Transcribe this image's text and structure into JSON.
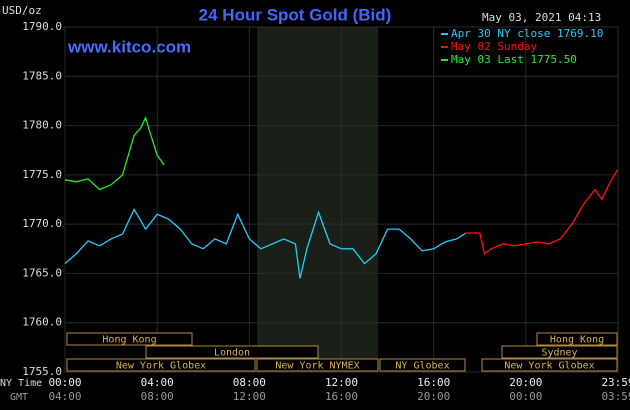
{
  "chart_data": {
    "type": "line",
    "title": "24 Hour Spot Gold (Bid)",
    "watermark": "www.kitco.com",
    "timestamp": "May 03, 2021 04:13",
    "y_label": "USD/oz",
    "x_label": "NY Time",
    "x2_label": "GMT",
    "ylim": [
      1755,
      1790
    ],
    "yticks": [
      {
        "value": 1755,
        "label": "1755.0"
      },
      {
        "value": 1760,
        "label": "1760.0"
      },
      {
        "value": 1765,
        "label": "1765.0"
      },
      {
        "value": 1770,
        "label": "1770.0"
      },
      {
        "value": 1775,
        "label": "1775.0"
      },
      {
        "value": 1780,
        "label": "1780.0"
      },
      {
        "value": 1785,
        "label": "1785.0"
      },
      {
        "value": 1790,
        "label": "1790.0"
      }
    ],
    "xlim": [
      0,
      24
    ],
    "xticks": [
      {
        "value": 0,
        "label": "00:00"
      },
      {
        "value": 4,
        "label": "04:00"
      },
      {
        "value": 8,
        "label": "08:00"
      },
      {
        "value": 12,
        "label": "12:00"
      },
      {
        "value": 16,
        "label": "16:00"
      },
      {
        "value": 20,
        "label": "20:00"
      },
      {
        "value": 24,
        "label": "23:59"
      }
    ],
    "x2ticks": [
      {
        "value": 0,
        "label": "04:00"
      },
      {
        "value": 4,
        "label": "08:00"
      },
      {
        "value": 8,
        "label": "12:00"
      },
      {
        "value": 12,
        "label": "16:00"
      },
      {
        "value": 16,
        "label": "20:00"
      },
      {
        "value": 20,
        "label": "00:00"
      },
      {
        "value": 24,
        "label": "03:59"
      }
    ],
    "grid": true,
    "sessions": [
      "Hong Kong",
      "London",
      "New York Globex",
      "New York NYMEX",
      "NY Globex",
      "Hong Kong",
      "Sydney",
      "New York Globex"
    ],
    "series": [
      {
        "name": "Apr 30 NY close 1769.10",
        "color": "#22ccff",
        "x": [
          0,
          0.5,
          1,
          1.5,
          2,
          2.5,
          3,
          3.5,
          4,
          4.5,
          5,
          5.5,
          6,
          6.5,
          7,
          7.5,
          8,
          8.5,
          9,
          9.5,
          10,
          10.2,
          10.5,
          11,
          11.5,
          12,
          12.5,
          13,
          13.5,
          14,
          14.5,
          15,
          15.5,
          16,
          16.5,
          17,
          17.4
        ],
        "values": [
          1766.0,
          1767.0,
          1768.3,
          1767.8,
          1768.5,
          1769.0,
          1771.5,
          1769.5,
          1771.0,
          1770.5,
          1769.5,
          1768.0,
          1767.5,
          1768.5,
          1768.0,
          1771.0,
          1768.5,
          1767.5,
          1768.0,
          1768.5,
          1768.0,
          1764.5,
          1767.5,
          1771.2,
          1768.0,
          1767.5,
          1767.5,
          1766.0,
          1767.0,
          1769.5,
          1769.5,
          1768.5,
          1767.3,
          1767.5,
          1768.2,
          1768.5,
          1769.1
        ]
      },
      {
        "name": "May 02 Sunday",
        "color": "#ff1010",
        "x": [
          17.4,
          18,
          18.2,
          18.5,
          19,
          19.5,
          20,
          20.5,
          21,
          21.5,
          22,
          22.5,
          23,
          23.3,
          23.6,
          23.98
        ],
        "values": [
          1769.1,
          1769.1,
          1767.0,
          1767.5,
          1768.0,
          1767.8,
          1768.0,
          1768.2,
          1768.0,
          1768.5,
          1770.0,
          1772.0,
          1773.5,
          1772.5,
          1774.0,
          1775.5
        ]
      },
      {
        "name": "May 03 Last 1775.50",
        "color": "#22ee22",
        "x": [
          0,
          0.5,
          1,
          1.5,
          2,
          2.5,
          3,
          3.3,
          3.5,
          3.7,
          4,
          4.3
        ],
        "values": [
          1774.5,
          1774.3,
          1774.6,
          1773.5,
          1774.0,
          1775.0,
          1779.0,
          1779.8,
          1780.8,
          1779.2,
          1777.0,
          1776.0
        ]
      }
    ]
  }
}
